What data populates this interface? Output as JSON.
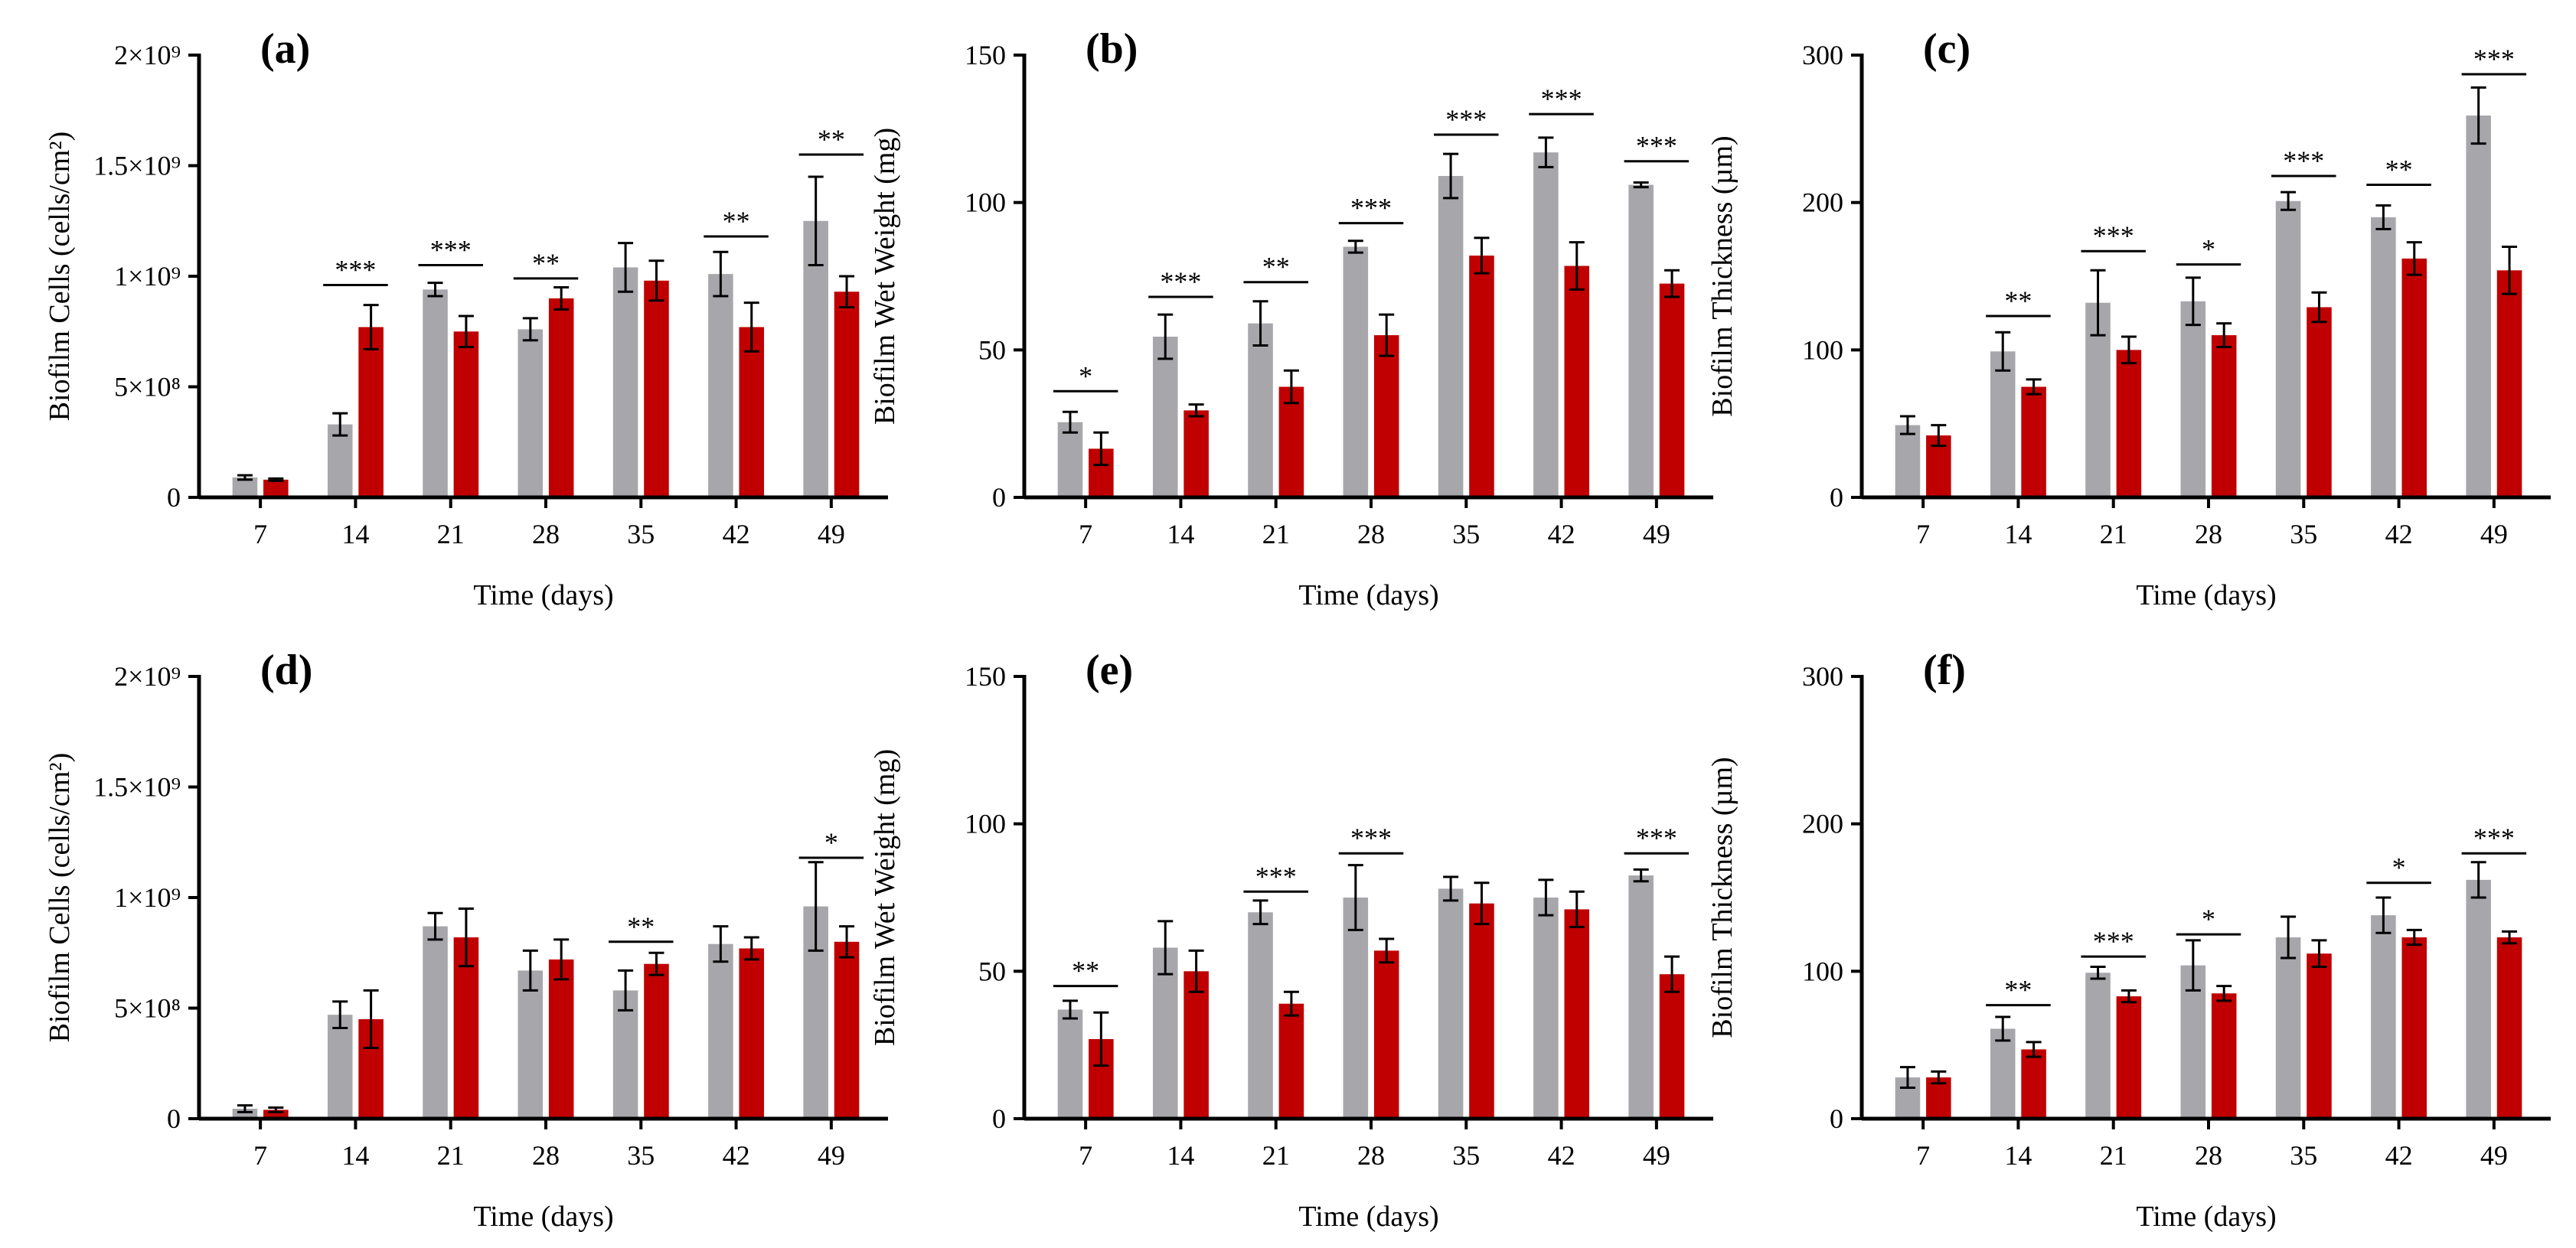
{
  "colors": {
    "grey": "#A7A7AB",
    "red": "#C00000"
  },
  "chart_data": [
    {
      "panel_label": "(a)",
      "type": "bar",
      "xlabel": "Time (days)",
      "ylabel": "Biofilm Cells (cells/cm²)",
      "ylim": [
        0,
        2000000000
      ],
      "yscale_factor": 1000000000.0,
      "yticks": [
        0,
        500000000,
        1000000000,
        1500000000,
        2000000000
      ],
      "ytick_labels": [
        "0",
        "5×10⁸",
        "1×10⁹",
        "1.5×10⁹",
        "2×10⁹"
      ],
      "categories": [
        "7",
        "14",
        "21",
        "28",
        "35",
        "42",
        "49"
      ],
      "series": [
        {
          "color": "#A7A7AB",
          "values": [
            90000000.0,
            330000000.0,
            940000000.0,
            760000000.0,
            1040000000.0,
            1010000000.0,
            1250000000.0
          ],
          "errors": [
            10000000.0,
            50000000.0,
            30000000.0,
            50000000.0,
            110000000.0,
            100000000.0,
            200000000.0
          ]
        },
        {
          "color": "#C00000",
          "values": [
            80000000.0,
            770000000.0,
            750000000.0,
            900000000.0,
            980000000.0,
            770000000.0,
            930000000.0
          ],
          "errors": [
            5000000.0,
            100000000.0,
            70000000.0,
            50000000.0,
            90000000.0,
            110000000.0,
            70000000.0
          ]
        }
      ],
      "significance": [
        {
          "category": "14",
          "label": "***",
          "y": 960000000.0
        },
        {
          "category": "21",
          "label": "***",
          "y": 1050000000.0
        },
        {
          "category": "28",
          "label": "**",
          "y": 990000000.0
        },
        {
          "category": "42",
          "label": "**",
          "y": 1180000000.0
        },
        {
          "category": "49",
          "label": "**",
          "y": 1550000000.0
        }
      ]
    },
    {
      "panel_label": "(b)",
      "type": "bar",
      "xlabel": "Time (days)",
      "ylabel": "Biofilm Wet Weight (mg)",
      "ylim": [
        0,
        150
      ],
      "yscale_factor": 1,
      "yticks": [
        0,
        50,
        100,
        150
      ],
      "ytick_labels": [
        "0",
        "50",
        "100",
        "150"
      ],
      "categories": [
        "7",
        "14",
        "21",
        "28",
        "35",
        "42",
        "49"
      ],
      "series": [
        {
          "color": "#A7A7AB",
          "values": [
            25.5,
            54.5,
            59,
            85,
            109,
            117,
            106
          ],
          "errors": [
            3.5,
            7.5,
            7.5,
            2,
            7.5,
            5,
            0.8
          ]
        },
        {
          "color": "#C00000",
          "values": [
            16.5,
            29.5,
            37.5,
            55,
            82,
            78.5,
            72.5
          ],
          "errors": [
            5.5,
            2,
            5.5,
            7,
            6,
            8,
            4.5
          ]
        }
      ],
      "significance": [
        {
          "category": "7",
          "label": "*",
          "y": 36
        },
        {
          "category": "14",
          "label": "***",
          "y": 68
        },
        {
          "category": "21",
          "label": "**",
          "y": 73
        },
        {
          "category": "28",
          "label": "***",
          "y": 93
        },
        {
          "category": "35",
          "label": "***",
          "y": 123
        },
        {
          "category": "42",
          "label": "***",
          "y": 130
        },
        {
          "category": "49",
          "label": "***",
          "y": 114
        }
      ]
    },
    {
      "panel_label": "(c)",
      "type": "bar",
      "xlabel": "Time (days)",
      "ylabel": "Biofilm Thickness (µm)",
      "ylim": [
        0,
        300
      ],
      "yscale_factor": 1,
      "yticks": [
        0,
        100,
        200,
        300
      ],
      "ytick_labels": [
        "0",
        "100",
        "200",
        "300"
      ],
      "categories": [
        "7",
        "14",
        "21",
        "28",
        "35",
        "42",
        "49"
      ],
      "series": [
        {
          "color": "#A7A7AB",
          "values": [
            49,
            99,
            132,
            133,
            201,
            190,
            259
          ],
          "errors": [
            6,
            13,
            22,
            16,
            6,
            8,
            19
          ]
        },
        {
          "color": "#C00000",
          "values": [
            42,
            75,
            100,
            110,
            129,
            162,
            154
          ],
          "errors": [
            7,
            5,
            9,
            8,
            10,
            11,
            16
          ]
        }
      ],
      "significance": [
        {
          "category": "14",
          "label": "**",
          "y": 123
        },
        {
          "category": "21",
          "label": "***",
          "y": 167
        },
        {
          "category": "28",
          "label": "*",
          "y": 158
        },
        {
          "category": "35",
          "label": "***",
          "y": 218
        },
        {
          "category": "42",
          "label": "**",
          "y": 212
        },
        {
          "category": "49",
          "label": "***",
          "y": 287
        }
      ]
    },
    {
      "panel_label": "(d)",
      "type": "bar",
      "xlabel": "Time (days)",
      "ylabel": "Biofilm Cells (cells/cm²)",
      "ylim": [
        0,
        2000000000
      ],
      "yscale_factor": 1000000000.0,
      "yticks": [
        0,
        500000000,
        1000000000,
        1500000000,
        2000000000
      ],
      "ytick_labels": [
        "0",
        "5×10⁸",
        "1×10⁹",
        "1.5×10⁹",
        "2×10⁹"
      ],
      "categories": [
        "7",
        "14",
        "21",
        "28",
        "35",
        "42",
        "49"
      ],
      "series": [
        {
          "color": "#A7A7AB",
          "values": [
            45000000.0,
            470000000.0,
            870000000.0,
            670000000.0,
            580000000.0,
            790000000.0,
            960000000.0
          ],
          "errors": [
            15000000.0,
            60000000.0,
            60000000.0,
            90000000.0,
            90000000.0,
            80000000.0,
            200000000.0
          ]
        },
        {
          "color": "#C00000",
          "values": [
            40000000.0,
            450000000.0,
            820000000.0,
            720000000.0,
            700000000.0,
            770000000.0,
            800000000.0
          ],
          "errors": [
            10000000.0,
            130000000.0,
            130000000.0,
            90000000.0,
            50000000.0,
            50000000.0,
            70000000.0
          ]
        }
      ],
      "significance": [
        {
          "category": "35",
          "label": "**",
          "y": 800000000.0
        },
        {
          "category": "49",
          "label": "*",
          "y": 1180000000.0
        }
      ]
    },
    {
      "panel_label": "(e)",
      "type": "bar",
      "xlabel": "Time (days)",
      "ylabel": "Biofilm Wet Weight (mg)",
      "ylim": [
        0,
        150
      ],
      "yscale_factor": 1,
      "yticks": [
        0,
        50,
        100,
        150
      ],
      "ytick_labels": [
        "0",
        "50",
        "100",
        "150"
      ],
      "categories": [
        "7",
        "14",
        "21",
        "28",
        "35",
        "42",
        "49"
      ],
      "series": [
        {
          "color": "#A7A7AB",
          "values": [
            37,
            58,
            70,
            75,
            78,
            75,
            82.5
          ],
          "errors": [
            3,
            9,
            4,
            11,
            4,
            6,
            2
          ]
        },
        {
          "color": "#C00000",
          "values": [
            27,
            50,
            39,
            57,
            73,
            71,
            49
          ],
          "errors": [
            9,
            7,
            4,
            4,
            7,
            6,
            6
          ]
        }
      ],
      "significance": [
        {
          "category": "7",
          "label": "**",
          "y": 45
        },
        {
          "category": "21",
          "label": "***",
          "y": 77
        },
        {
          "category": "28",
          "label": "***",
          "y": 90
        },
        {
          "category": "49",
          "label": "***",
          "y": 90
        }
      ]
    },
    {
      "panel_label": "(f)",
      "type": "bar",
      "xlabel": "Time (days)",
      "ylabel": "Biofilm Thickness (µm)",
      "ylim": [
        0,
        300
      ],
      "yscale_factor": 1,
      "yticks": [
        0,
        100,
        200,
        300
      ],
      "ytick_labels": [
        "0",
        "100",
        "200",
        "300"
      ],
      "categories": [
        "7",
        "14",
        "21",
        "28",
        "35",
        "42",
        "49"
      ],
      "series": [
        {
          "color": "#A7A7AB",
          "values": [
            28,
            61,
            99,
            104,
            123,
            138,
            162
          ],
          "errors": [
            7,
            8,
            4,
            17,
            14,
            12,
            12
          ]
        },
        {
          "color": "#C00000",
          "values": [
            28,
            47,
            83,
            85,
            112,
            123,
            123
          ],
          "errors": [
            4,
            5,
            4,
            5,
            9,
            5,
            4
          ]
        }
      ],
      "significance": [
        {
          "category": "14",
          "label": "**",
          "y": 77
        },
        {
          "category": "21",
          "label": "***",
          "y": 110
        },
        {
          "category": "28",
          "label": "*",
          "y": 125
        },
        {
          "category": "42",
          "label": "*",
          "y": 160
        },
        {
          "category": "49",
          "label": "***",
          "y": 180
        }
      ]
    }
  ]
}
